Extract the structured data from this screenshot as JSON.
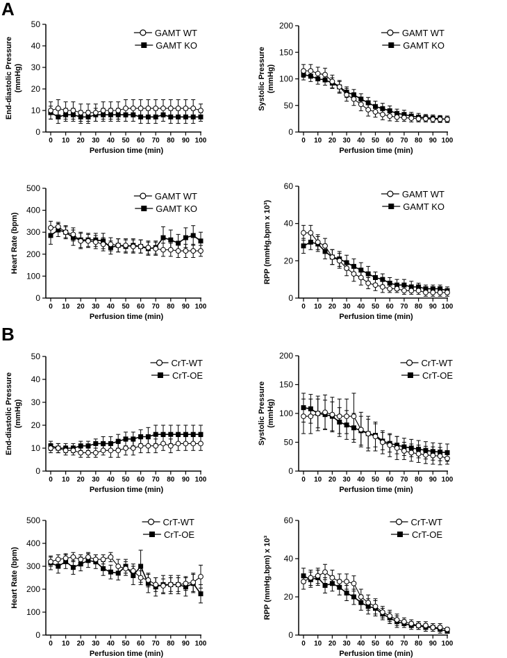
{
  "panels": [
    "A",
    "B"
  ],
  "colors": {
    "wt": "#000000",
    "ko": "#000000"
  },
  "chart_data": [
    {
      "type": "line",
      "panel": "A",
      "ylabel": [
        "End-diastolic Pressure",
        "(mmHg)"
      ],
      "xlabel": "Perfusion time (min)",
      "ylim": [
        0,
        50
      ],
      "yticks": [
        0,
        10,
        20,
        30,
        40,
        50
      ],
      "xlim": [
        0,
        100
      ],
      "xticks": [
        0,
        10,
        20,
        30,
        40,
        50,
        60,
        70,
        80,
        90,
        100
      ],
      "legend": "top-right",
      "x": [
        0,
        5,
        10,
        15,
        20,
        25,
        30,
        35,
        40,
        45,
        50,
        55,
        60,
        65,
        70,
        75,
        80,
        85,
        90,
        95,
        100
      ],
      "series": [
        {
          "name": "GAMT WT",
          "marker": "open-circle",
          "values": [
            10,
            11,
            10,
            10,
            9,
            9,
            9,
            10,
            10,
            10,
            11,
            11,
            11,
            11,
            11,
            11,
            11,
            11,
            11,
            11,
            10
          ],
          "err": [
            4,
            4,
            4,
            4,
            4,
            4,
            4,
            4,
            4,
            4,
            4,
            4,
            4,
            4,
            4,
            4,
            4,
            4,
            4,
            4,
            3
          ]
        },
        {
          "name": "GAMT KO",
          "marker": "filled-square",
          "values": [
            9,
            7,
            8,
            8,
            7,
            7,
            8,
            8,
            8,
            8,
            8,
            8,
            7,
            7,
            7,
            8,
            7,
            7,
            7,
            7,
            7
          ],
          "err": [
            3,
            3,
            3,
            3,
            3,
            3,
            3,
            3,
            3,
            3,
            3,
            3,
            3,
            3,
            3,
            3,
            3,
            3,
            3,
            3,
            2
          ]
        }
      ]
    },
    {
      "type": "line",
      "panel": "A",
      "ylabel": [
        "Systolic Pressure",
        "(mmHg)"
      ],
      "xlabel": "Perfusion time (min)",
      "ylim": [
        0,
        200
      ],
      "yticks": [
        0,
        50,
        100,
        150,
        200
      ],
      "xlim": [
        0,
        100
      ],
      "xticks": [
        0,
        10,
        20,
        30,
        40,
        50,
        60,
        70,
        80,
        90,
        100
      ],
      "legend": "top-right",
      "x": [
        0,
        5,
        10,
        15,
        20,
        25,
        30,
        35,
        40,
        45,
        50,
        55,
        60,
        65,
        70,
        75,
        80,
        85,
        90,
        95,
        100
      ],
      "series": [
        {
          "name": "GAMT WT",
          "marker": "open-circle",
          "values": [
            115,
            115,
            110,
            108,
            95,
            85,
            70,
            62,
            52,
            42,
            38,
            33,
            30,
            28,
            27,
            26,
            25,
            25,
            24,
            24,
            24
          ],
          "err": [
            12,
            12,
            12,
            12,
            12,
            12,
            12,
            12,
            12,
            12,
            10,
            10,
            9,
            8,
            7,
            7,
            6,
            6,
            6,
            6,
            6
          ]
        },
        {
          "name": "GAMT KO",
          "marker": "filled-square",
          "values": [
            108,
            105,
            100,
            98,
            92,
            85,
            75,
            70,
            62,
            55,
            48,
            44,
            40,
            35,
            33,
            30,
            28,
            27,
            26,
            25,
            24
          ],
          "err": [
            10,
            10,
            10,
            10,
            10,
            10,
            10,
            10,
            10,
            10,
            10,
            10,
            9,
            8,
            8,
            7,
            7,
            6,
            6,
            6,
            6
          ]
        }
      ]
    },
    {
      "type": "line",
      "panel": "A",
      "ylabel": [
        "Heart Rate (bpm)"
      ],
      "xlabel": "Perfusion time (min)",
      "ylim": [
        0,
        500
      ],
      "yticks": [
        0,
        100,
        200,
        300,
        400,
        500
      ],
      "xlim": [
        0,
        100
      ],
      "xticks": [
        0,
        10,
        20,
        30,
        40,
        50,
        60,
        70,
        80,
        90,
        100
      ],
      "legend": "top-right",
      "x": [
        0,
        5,
        10,
        15,
        20,
        25,
        30,
        35,
        40,
        45,
        50,
        55,
        60,
        65,
        70,
        75,
        80,
        85,
        90,
        95,
        100
      ],
      "series": [
        {
          "name": "GAMT WT",
          "marker": "open-circle",
          "values": [
            320,
            325,
            300,
            290,
            260,
            260,
            255,
            245,
            245,
            240,
            240,
            235,
            235,
            230,
            225,
            220,
            220,
            215,
            215,
            215,
            215
          ],
          "err": [
            30,
            20,
            25,
            30,
            35,
            30,
            30,
            30,
            30,
            30,
            30,
            30,
            30,
            30,
            30,
            30,
            30,
            30,
            30,
            30,
            25
          ]
        },
        {
          "name": "GAMT KO",
          "marker": "filled-square",
          "values": [
            285,
            310,
            300,
            275,
            265,
            265,
            265,
            260,
            230,
            240,
            235,
            240,
            235,
            225,
            230,
            275,
            265,
            250,
            275,
            285,
            260
          ],
          "err": [
            40,
            30,
            30,
            35,
            35,
            30,
            30,
            35,
            30,
            30,
            30,
            30,
            30,
            30,
            30,
            50,
            45,
            40,
            45,
            45,
            40
          ]
        }
      ]
    },
    {
      "type": "line",
      "panel": "A",
      "ylabel": [
        "RPP (mmHg.bpm x 10³)"
      ],
      "xlabel": "Perfusion time (min)",
      "ylim": [
        0,
        60
      ],
      "yticks": [
        0,
        20,
        40,
        60
      ],
      "xlim": [
        0,
        100
      ],
      "xticks": [
        0,
        10,
        20,
        30,
        40,
        50,
        60,
        70,
        80,
        90,
        100
      ],
      "legend": "top-right",
      "x": [
        0,
        5,
        10,
        15,
        20,
        25,
        30,
        35,
        40,
        45,
        50,
        55,
        60,
        65,
        70,
        75,
        80,
        85,
        90,
        95,
        100
      ],
      "series": [
        {
          "name": "GAMT WT",
          "marker": "open-circle",
          "values": [
            35,
            35,
            30,
            28,
            22,
            20,
            16,
            13,
            11,
            8,
            7,
            6,
            5,
            5,
            4,
            4,
            4,
            3,
            3,
            3,
            3
          ],
          "err": [
            4,
            4,
            4,
            4,
            4,
            4,
            4,
            4,
            4,
            3,
            3,
            3,
            2,
            2,
            2,
            2,
            2,
            2,
            2,
            2,
            2
          ]
        },
        {
          "name": "GAMT KO",
          "marker": "filled-square",
          "values": [
            28,
            30,
            29,
            25,
            22,
            21,
            19,
            17,
            15,
            13,
            11,
            10,
            8,
            7,
            7,
            6,
            6,
            5,
            5,
            5,
            4
          ],
          "err": [
            4,
            4,
            4,
            4,
            4,
            4,
            4,
            4,
            4,
            4,
            3,
            3,
            3,
            3,
            3,
            3,
            2,
            2,
            2,
            2,
            2
          ]
        }
      ]
    },
    {
      "type": "line",
      "panel": "B",
      "ylabel": [
        "End-diastolic Pressure",
        "(mmHg)"
      ],
      "xlabel": "Perfusion time (min)",
      "ylim": [
        0,
        50
      ],
      "yticks": [
        0,
        10,
        20,
        30,
        40,
        50
      ],
      "xlim": [
        0,
        100
      ],
      "xticks": [
        0,
        10,
        20,
        30,
        40,
        50,
        60,
        70,
        80,
        90,
        100
      ],
      "legend": "top-right",
      "x": [
        0,
        5,
        10,
        15,
        20,
        25,
        30,
        35,
        40,
        45,
        50,
        55,
        60,
        65,
        70,
        75,
        80,
        85,
        90,
        95,
        100
      ],
      "series": [
        {
          "name": "CrT-WT",
          "marker": "open-circle",
          "values": [
            10,
            10,
            9,
            9,
            8,
            8,
            8,
            9,
            9,
            9,
            10,
            10,
            11,
            11,
            11,
            12,
            11,
            12,
            12,
            12,
            12
          ],
          "err": [
            2,
            2,
            2,
            2,
            2,
            2,
            2,
            2,
            3,
            3,
            3,
            3,
            3,
            3,
            3,
            3,
            3,
            3,
            3,
            3,
            3
          ]
        },
        {
          "name": "CrT-OE",
          "marker": "filled-square",
          "values": [
            11,
            10,
            10,
            10,
            11,
            11,
            12,
            12,
            12,
            13,
            14,
            14,
            15,
            15,
            16,
            16,
            16,
            16,
            16,
            16,
            16
          ],
          "err": [
            2,
            2,
            2,
            2,
            2,
            2,
            2,
            3,
            3,
            3,
            3,
            3,
            3,
            4,
            4,
            4,
            4,
            4,
            4,
            4,
            4
          ]
        }
      ]
    },
    {
      "type": "line",
      "panel": "B",
      "ylabel": [
        "Systolic Pressure",
        "(mmHg)"
      ],
      "xlabel": "Perfusion time (min)",
      "ylim": [
        0,
        200
      ],
      "yticks": [
        0,
        50,
        100,
        150,
        200
      ],
      "xlim": [
        0,
        100
      ],
      "xticks": [
        0,
        10,
        20,
        30,
        40,
        50,
        60,
        70,
        80,
        90,
        100
      ],
      "legend": "top-right",
      "x": [
        0,
        5,
        10,
        15,
        20,
        25,
        30,
        35,
        40,
        45,
        50,
        55,
        60,
        65,
        70,
        75,
        80,
        85,
        90,
        95,
        100
      ],
      "series": [
        {
          "name": "CrT-WT",
          "marker": "open-circle",
          "values": [
            95,
            95,
            100,
            102,
            98,
            95,
            95,
            95,
            72,
            65,
            60,
            50,
            45,
            40,
            35,
            32,
            30,
            28,
            27,
            26,
            22
          ],
          "err": [
            30,
            30,
            30,
            30,
            30,
            30,
            30,
            40,
            30,
            30,
            25,
            20,
            20,
            20,
            15,
            15,
            15,
            15,
            15,
            15,
            10
          ]
        },
        {
          "name": "CrT-OE",
          "marker": "filled-square",
          "values": [
            110,
            108,
            100,
            98,
            95,
            85,
            80,
            75,
            70,
            65,
            62,
            52,
            48,
            45,
            42,
            40,
            38,
            36,
            34,
            33,
            32
          ],
          "err": [
            25,
            25,
            25,
            25,
            25,
            25,
            25,
            25,
            25,
            25,
            20,
            15,
            15,
            15,
            15,
            15,
            15,
            15,
            15,
            15,
            15
          ]
        }
      ]
    },
    {
      "type": "line",
      "panel": "B",
      "ylabel": [
        "Heart Rate (bpm)"
      ],
      "xlabel": "Perfusion time (min)",
      "ylim": [
        0,
        500
      ],
      "yticks": [
        0,
        100,
        200,
        300,
        400,
        500
      ],
      "xlim": [
        0,
        100
      ],
      "xticks": [
        0,
        10,
        20,
        30,
        40,
        50,
        60,
        70,
        80,
        90,
        100
      ],
      "legend": "top-right",
      "x": [
        0,
        5,
        10,
        15,
        20,
        25,
        30,
        35,
        40,
        45,
        50,
        55,
        60,
        65,
        70,
        75,
        80,
        85,
        90,
        95,
        100
      ],
      "series": [
        {
          "name": "CrT-WT",
          "marker": "open-circle",
          "values": [
            320,
            330,
            335,
            340,
            330,
            340,
            330,
            330,
            340,
            300,
            290,
            280,
            250,
            240,
            220,
            215,
            220,
            220,
            225,
            230,
            255
          ],
          "err": [
            20,
            20,
            20,
            20,
            20,
            20,
            20,
            20,
            20,
            30,
            30,
            30,
            30,
            30,
            30,
            30,
            30,
            30,
            30,
            40,
            50
          ]
        },
        {
          "name": "CrT-OE",
          "marker": "filled-square",
          "values": [
            315,
            300,
            320,
            295,
            310,
            325,
            320,
            290,
            275,
            270,
            300,
            260,
            300,
            225,
            210,
            220,
            220,
            220,
            210,
            225,
            180
          ],
          "err": [
            30,
            30,
            30,
            30,
            30,
            30,
            30,
            30,
            30,
            30,
            30,
            40,
            70,
            40,
            40,
            40,
            40,
            40,
            40,
            40,
            40
          ]
        }
      ]
    },
    {
      "type": "line",
      "panel": "B",
      "ylabel": [
        "RPP (mmHg.bpm) x 10³"
      ],
      "xlabel": "Perfusion time (min)",
      "ylim": [
        0,
        60
      ],
      "yticks": [
        0,
        20,
        40,
        60
      ],
      "xlim": [
        0,
        100
      ],
      "xticks": [
        0,
        10,
        20,
        30,
        40,
        50,
        60,
        70,
        80,
        90,
        100
      ],
      "legend": "top-right",
      "x": [
        0,
        5,
        10,
        15,
        20,
        25,
        30,
        35,
        40,
        45,
        50,
        55,
        60,
        65,
        70,
        75,
        80,
        85,
        90,
        95,
        100
      ],
      "series": [
        {
          "name": "CrT-WT",
          "marker": "open-circle",
          "values": [
            28,
            30,
            31,
            33,
            30,
            28,
            28,
            27,
            20,
            17,
            15,
            12,
            10,
            8,
            7,
            6,
            5,
            5,
            4,
            4,
            3
          ],
          "err": [
            4,
            4,
            4,
            4,
            4,
            4,
            4,
            4,
            4,
            4,
            4,
            3,
            3,
            3,
            2,
            2,
            2,
            2,
            2,
            2,
            1
          ]
        },
        {
          "name": "CrT-OE",
          "marker": "filled-square",
          "values": [
            31,
            29,
            30,
            26,
            27,
            25,
            22,
            20,
            17,
            15,
            14,
            11,
            9,
            7,
            6,
            5,
            5,
            4,
            4,
            3,
            2
          ],
          "err": [
            4,
            4,
            4,
            4,
            4,
            4,
            4,
            4,
            4,
            4,
            4,
            3,
            3,
            3,
            2,
            2,
            2,
            2,
            2,
            2,
            1
          ]
        }
      ]
    }
  ]
}
